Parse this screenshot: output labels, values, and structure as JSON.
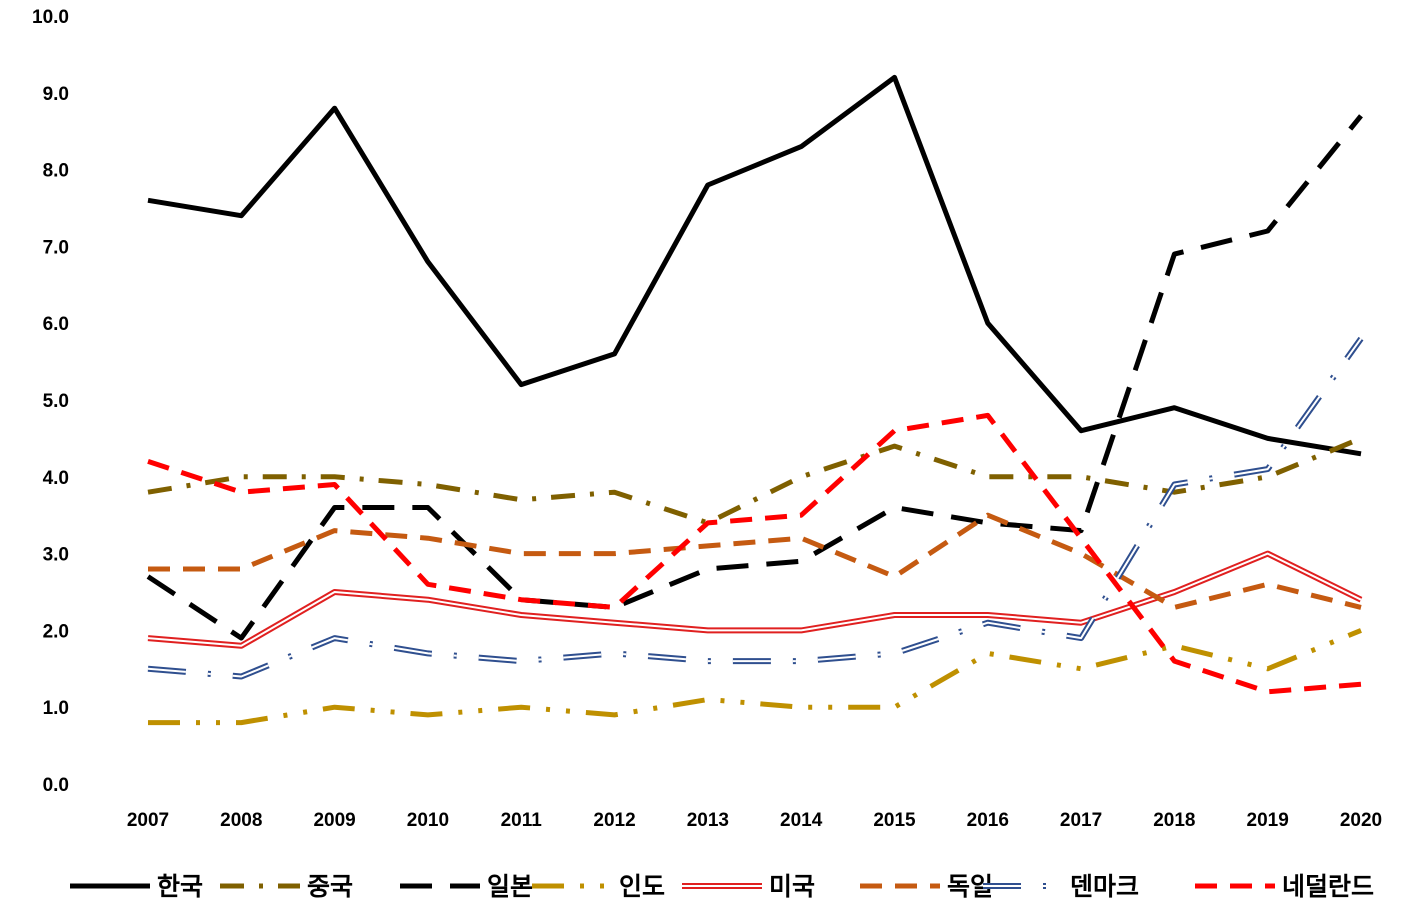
{
  "chart_data": {
    "type": "line",
    "title": "",
    "xlabel": "",
    "ylabel": "",
    "ylim": [
      0,
      10
    ],
    "yticks": [
      "0.0",
      "1.0",
      "2.0",
      "3.0",
      "4.0",
      "5.0",
      "6.0",
      "7.0",
      "8.0",
      "9.0",
      "10.0"
    ],
    "categories": [
      "2007",
      "2008",
      "2009",
      "2010",
      "2011",
      "2012",
      "2013",
      "2014",
      "2015",
      "2016",
      "2017",
      "2018",
      "2019",
      "2020"
    ],
    "grid": false,
    "legend_position": "bottom",
    "series": [
      {
        "name": "한국",
        "color": "#000000",
        "style": "solid",
        "values": [
          7.6,
          7.4,
          8.8,
          6.8,
          5.2,
          5.6,
          7.8,
          8.3,
          9.2,
          6.0,
          4.6,
          4.9,
          4.5,
          4.3
        ]
      },
      {
        "name": "중국",
        "color": "#7f6000",
        "style": "dashdot",
        "values": [
          3.8,
          4.0,
          4.0,
          3.9,
          3.7,
          3.8,
          3.4,
          4.0,
          4.4,
          4.0,
          4.0,
          3.8,
          4.0,
          4.5
        ]
      },
      {
        "name": "일본",
        "color": "#000000",
        "style": "longdash",
        "values": [
          2.7,
          1.9,
          3.6,
          3.6,
          2.4,
          2.3,
          2.8,
          2.9,
          3.6,
          3.4,
          3.3,
          6.9,
          7.2,
          8.7
        ]
      },
      {
        "name": "인도",
        "color": "#bf9000",
        "style": "longdashdotdot",
        "values": [
          0.8,
          0.8,
          1.0,
          0.9,
          1.0,
          0.9,
          1.1,
          1.0,
          1.0,
          1.7,
          1.5,
          1.8,
          1.5,
          2.0
        ]
      },
      {
        "name": "미국",
        "color": "#e02020",
        "style": "double",
        "values": [
          1.9,
          1.8,
          2.5,
          2.4,
          2.2,
          2.1,
          2.0,
          2.0,
          2.2,
          2.2,
          2.1,
          2.5,
          3.0,
          2.4
        ]
      },
      {
        "name": "독일",
        "color": "#c55a11",
        "style": "dash",
        "values": [
          2.8,
          2.8,
          3.3,
          3.2,
          3.0,
          3.0,
          3.1,
          3.2,
          2.7,
          3.5,
          3.0,
          2.3,
          2.6,
          2.3
        ]
      },
      {
        "name": "덴마크",
        "color": "#2f4f8f",
        "style": "doubledot",
        "values": [
          1.5,
          1.4,
          1.9,
          1.7,
          1.6,
          1.7,
          1.6,
          1.6,
          1.7,
          2.1,
          1.9,
          3.9,
          4.1,
          5.8
        ]
      },
      {
        "name": "네덜란드",
        "color": "#ff0000",
        "style": "dash",
        "values": [
          4.2,
          3.8,
          3.9,
          2.6,
          2.4,
          2.3,
          3.4,
          3.5,
          4.6,
          4.8,
          3.2,
          1.6,
          1.2,
          1.3
        ]
      }
    ]
  }
}
